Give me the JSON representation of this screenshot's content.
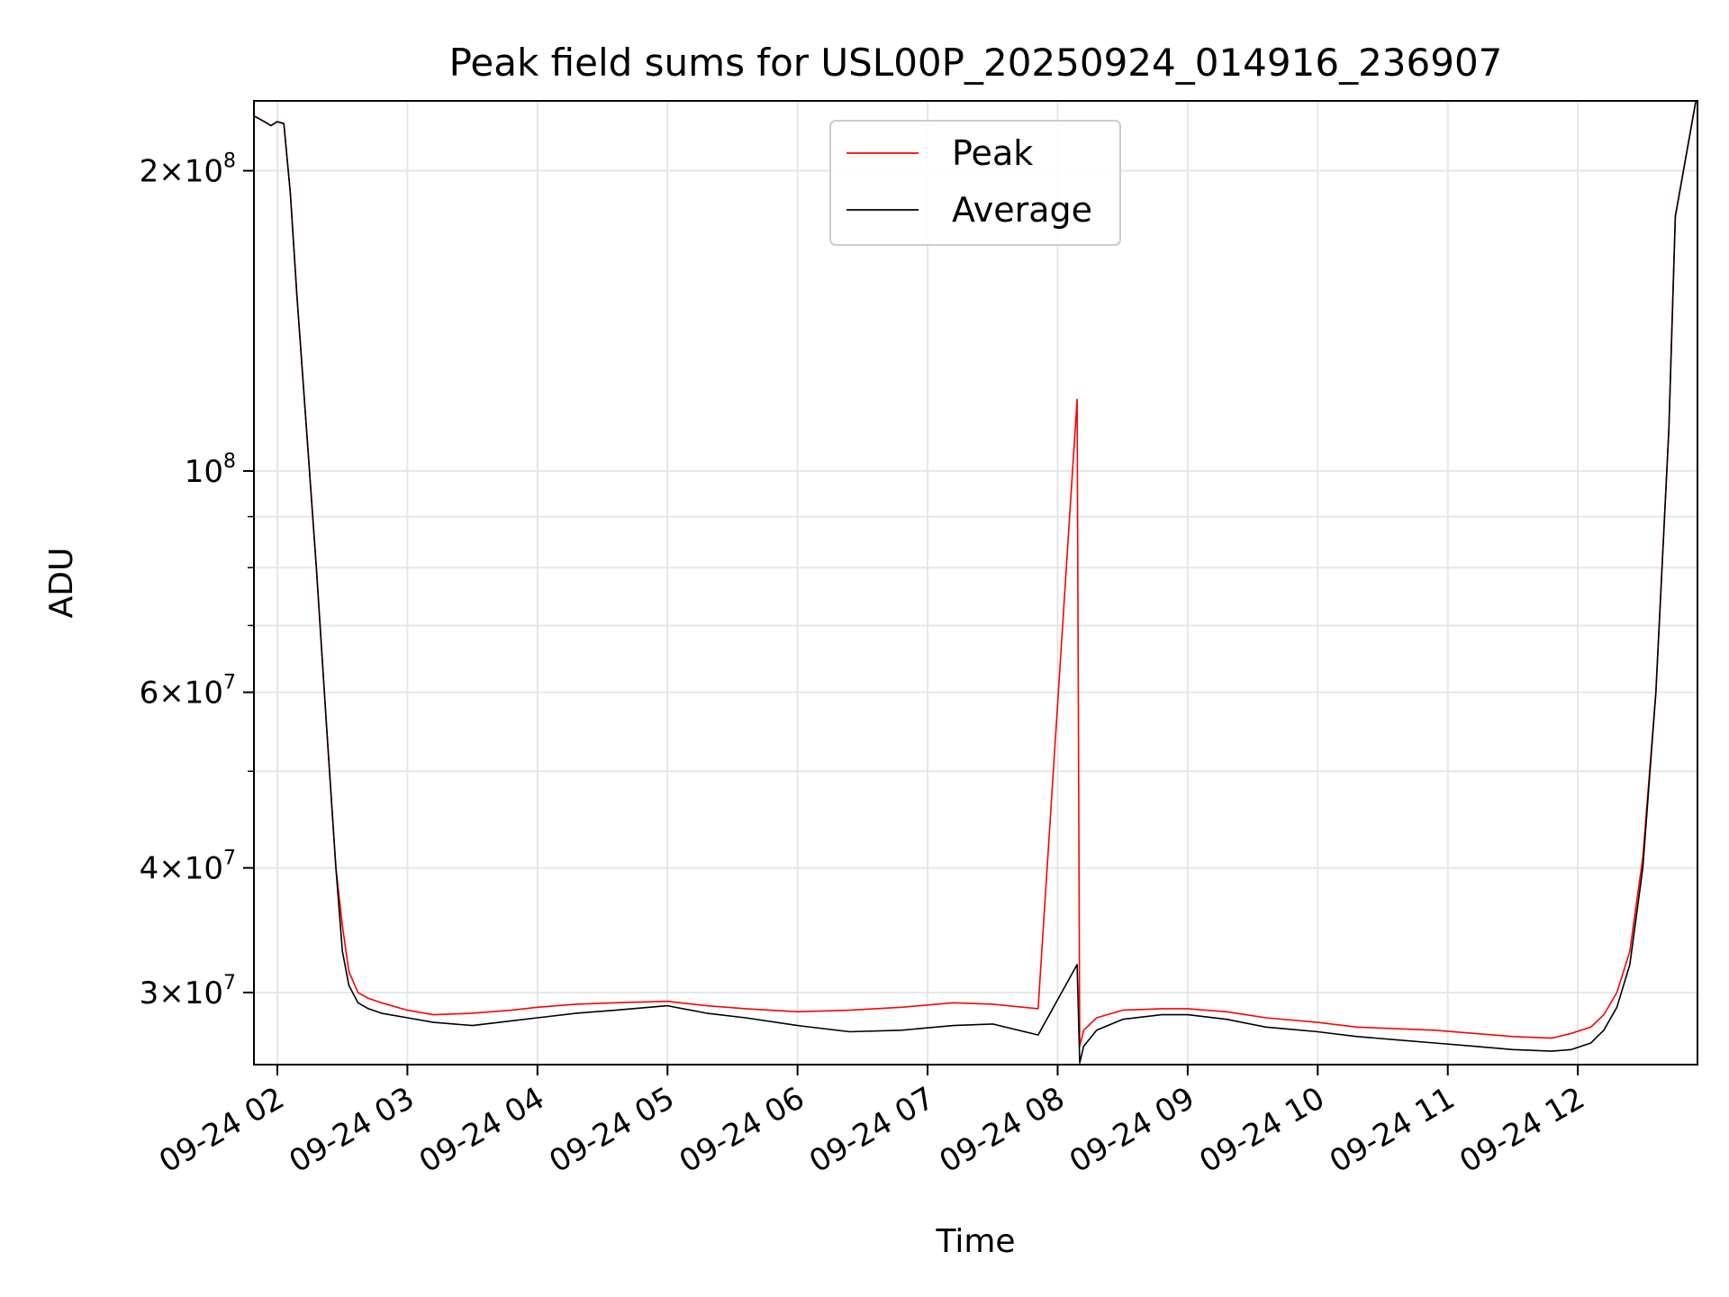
{
  "chart_data": {
    "type": "line",
    "title": "Peak field sums for USL00P_20250924_014916_236907",
    "xlabel": "Time",
    "ylabel": "ADU",
    "yscale": "log",
    "ylim": [
      25400000,
      235000000
    ],
    "xlim_hours": [
      1.82,
      12.92
    ],
    "grid": true,
    "legend_position": "top-center",
    "x_ticks": [
      {
        "value": 2,
        "label": "09-24 02"
      },
      {
        "value": 3,
        "label": "09-24 03"
      },
      {
        "value": 4,
        "label": "09-24 04"
      },
      {
        "value": 5,
        "label": "09-24 05"
      },
      {
        "value": 6,
        "label": "09-24 06"
      },
      {
        "value": 7,
        "label": "09-24 07"
      },
      {
        "value": 8,
        "label": "09-24 08"
      },
      {
        "value": 9,
        "label": "09-24 09"
      },
      {
        "value": 10,
        "label": "09-24 10"
      },
      {
        "value": 11,
        "label": "09-24 11"
      },
      {
        "value": 12,
        "label": "09-24 12"
      }
    ],
    "y_ticks": [
      {
        "value": 30000000,
        "mant": "3",
        "exp": "7"
      },
      {
        "value": 40000000,
        "mant": "4",
        "exp": "7"
      },
      {
        "value": 60000000,
        "mant": "6",
        "exp": "7"
      },
      {
        "value": 100000000,
        "mant": "",
        "exp": "8"
      },
      {
        "value": 200000000,
        "mant": "2",
        "exp": "8"
      }
    ],
    "y_minor_ticks": [
      50000000,
      70000000,
      80000000,
      90000000
    ],
    "series": [
      {
        "name": "Average",
        "color": "#000000",
        "x": [
          1.82,
          1.9,
          1.95,
          2.0,
          2.05,
          2.1,
          2.15,
          2.22,
          2.3,
          2.38,
          2.45,
          2.5,
          2.55,
          2.62,
          2.7,
          2.8,
          3.0,
          3.2,
          3.5,
          3.8,
          4.0,
          4.3,
          4.6,
          5.0,
          5.3,
          5.6,
          6.0,
          6.4,
          6.8,
          7.2,
          7.5,
          7.85,
          8.15,
          8.17,
          8.2,
          8.3,
          8.5,
          8.8,
          9.0,
          9.3,
          9.6,
          10.0,
          10.3,
          10.6,
          10.9,
          11.2,
          11.5,
          11.8,
          11.95,
          12.1,
          12.2,
          12.3,
          12.4,
          12.5,
          12.6,
          12.7,
          12.75,
          12.92
        ],
        "y": [
          227000000,
          224000000,
          222000000,
          224000000,
          223000000,
          190000000,
          150000000,
          112000000,
          80000000,
          55000000,
          40000000,
          33000000,
          30500000,
          29300000,
          28900000,
          28600000,
          28300000,
          28000000,
          27800000,
          28100000,
          28300000,
          28600000,
          28800000,
          29100000,
          28600000,
          28300000,
          27800000,
          27400000,
          27500000,
          27800000,
          27900000,
          27200000,
          32000000,
          25500000,
          26500000,
          27500000,
          28200000,
          28500000,
          28500000,
          28200000,
          27700000,
          27400000,
          27100000,
          26900000,
          26700000,
          26500000,
          26300000,
          26200000,
          26300000,
          26700000,
          27500000,
          29000000,
          32000000,
          40000000,
          60000000,
          110000000,
          180000000,
          240000000
        ]
      },
      {
        "name": "Peak",
        "color": "#ff0000",
        "x": [
          1.82,
          1.9,
          1.95,
          2.0,
          2.05,
          2.1,
          2.15,
          2.22,
          2.3,
          2.38,
          2.45,
          2.5,
          2.55,
          2.62,
          2.7,
          2.8,
          3.0,
          3.2,
          3.5,
          3.8,
          4.0,
          4.3,
          4.6,
          5.0,
          5.3,
          5.6,
          6.0,
          6.4,
          6.8,
          7.2,
          7.5,
          7.85,
          8.15,
          8.17,
          8.2,
          8.3,
          8.5,
          8.8,
          9.0,
          9.3,
          9.6,
          10.0,
          10.3,
          10.6,
          10.9,
          11.2,
          11.5,
          11.8,
          11.95,
          12.1,
          12.2,
          12.3,
          12.4,
          12.5,
          12.6,
          12.7,
          12.75,
          12.92
        ],
        "y": [
          227000000,
          224000000,
          222000000,
          224000000,
          223000000,
          190000000,
          150000000,
          112000000,
          80000000,
          55000000,
          40000000,
          35000000,
          31500000,
          30000000,
          29600000,
          29300000,
          28800000,
          28500000,
          28600000,
          28800000,
          29000000,
          29200000,
          29300000,
          29400000,
          29100000,
          28900000,
          28700000,
          28800000,
          29000000,
          29300000,
          29200000,
          28900000,
          118000000,
          26500000,
          27500000,
          28300000,
          28800000,
          28900000,
          28900000,
          28700000,
          28300000,
          28000000,
          27700000,
          27600000,
          27500000,
          27300000,
          27100000,
          27000000,
          27300000,
          27700000,
          28500000,
          30000000,
          33000000,
          41000000,
          60000000,
          110000000,
          180000000,
          240000000
        ]
      }
    ],
    "legend": [
      {
        "label": "Peak",
        "color": "#ff0000"
      },
      {
        "label": "Average",
        "color": "#000000"
      }
    ]
  }
}
